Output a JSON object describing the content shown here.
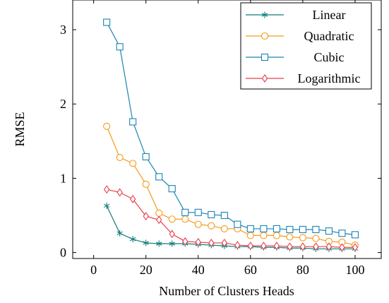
{
  "chart_data": {
    "type": "line",
    "title": "",
    "xlabel": "Number of Clusters Heads",
    "ylabel": "RMSE",
    "xlim": [
      -8,
      110
    ],
    "ylim": [
      -0.08,
      3.4
    ],
    "xticks": [
      0,
      20,
      40,
      60,
      80,
      100
    ],
    "yticks": [
      0,
      1,
      2,
      3
    ],
    "grid": false,
    "legend_position": "top-right",
    "x": [
      5,
      10,
      15,
      20,
      25,
      30,
      35,
      40,
      45,
      50,
      55,
      60,
      65,
      70,
      75,
      80,
      85,
      90,
      95,
      100
    ],
    "series": [
      {
        "name": "Linear",
        "color": "#127b7b",
        "marker": "asterisk",
        "values": [
          0.63,
          0.26,
          0.18,
          0.13,
          0.12,
          0.12,
          0.12,
          0.11,
          0.1,
          0.09,
          0.08,
          0.08,
          0.07,
          0.07,
          0.06,
          0.06,
          0.05,
          0.05,
          0.05,
          0.05
        ]
      },
      {
        "name": "Quadratic",
        "color": "#f59a17",
        "marker": "circle",
        "values": [
          1.7,
          1.28,
          1.2,
          0.92,
          0.53,
          0.45,
          0.45,
          0.38,
          0.36,
          0.32,
          0.32,
          0.23,
          0.23,
          0.23,
          0.21,
          0.2,
          0.19,
          0.15,
          0.14,
          0.1
        ]
      },
      {
        "name": "Cubic",
        "color": "#1b84b4",
        "marker": "square",
        "values": [
          3.1,
          2.77,
          1.76,
          1.29,
          1.02,
          0.86,
          0.54,
          0.54,
          0.51,
          0.5,
          0.38,
          0.32,
          0.32,
          0.32,
          0.31,
          0.31,
          0.31,
          0.29,
          0.26,
          0.24
        ]
      },
      {
        "name": "Logarithmic",
        "color": "#e8404a",
        "marker": "diamond",
        "values": [
          0.85,
          0.81,
          0.72,
          0.49,
          0.44,
          0.25,
          0.15,
          0.14,
          0.13,
          0.13,
          0.1,
          0.09,
          0.09,
          0.09,
          0.08,
          0.08,
          0.08,
          0.08,
          0.07,
          0.07
        ]
      }
    ]
  }
}
